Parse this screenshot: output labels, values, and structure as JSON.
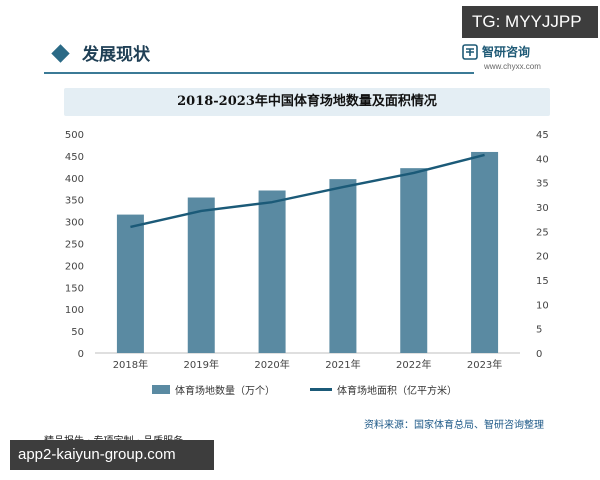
{
  "overlay": {
    "tg_tag": "TG: MYYJJPP",
    "bottom_url": "app2-kaiyun-group.com"
  },
  "header": {
    "section_title": "发展现状",
    "brand_name": "智研咨询",
    "brand_url": "www.chyxx.com"
  },
  "chart_data": {
    "type": "bar",
    "title": "2018-2023年中国体育场地数量及面积情况",
    "categories": [
      "2018年",
      "2019年",
      "2020年",
      "2021年",
      "2022年",
      "2023年"
    ],
    "series": [
      {
        "name": "体育场地数量（万个）",
        "type": "bar",
        "axis": "left",
        "values": [
          316,
          355,
          371,
          397,
          422,
          459
        ]
      },
      {
        "name": "体育场地面积（亿平方米）",
        "type": "line",
        "axis": "right",
        "values": [
          25.9,
          29.2,
          31.0,
          34.1,
          37.0,
          40.7
        ]
      }
    ],
    "y_left": {
      "min": 0,
      "max": 500,
      "step": 50
    },
    "y_right": {
      "min": 0,
      "max": 45,
      "step": 5
    },
    "colors": {
      "bar": "#5a8aa2",
      "line": "#1b5a78"
    },
    "legend_position": "bottom"
  },
  "source_text": "资料来源：国家体育总局、智研咨询整理",
  "footer": {
    "tagline": "精品报告 · 专项定制 · 品质服务"
  }
}
